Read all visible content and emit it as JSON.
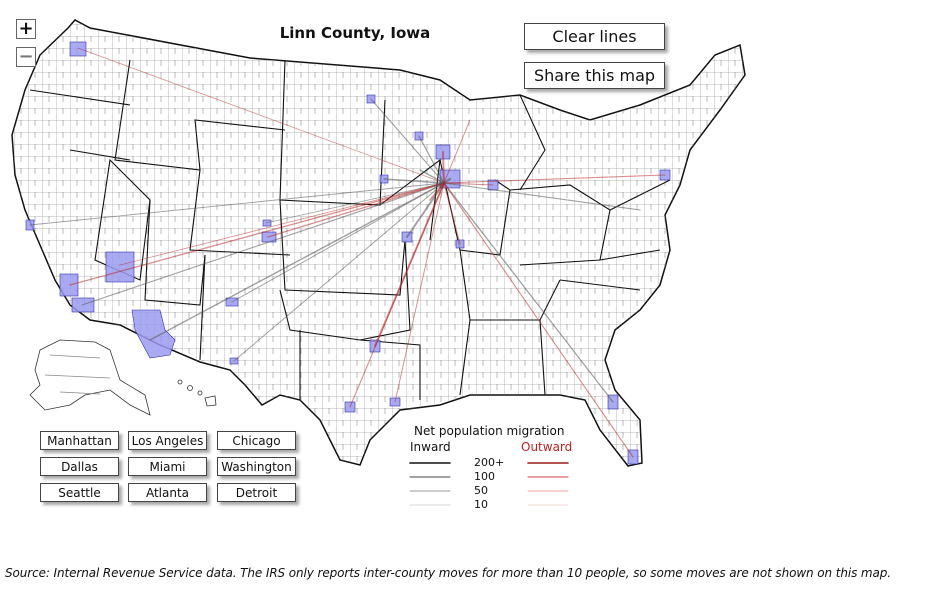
{
  "map": {
    "title": "Linn County, Iowa",
    "zoom_in_label": "+",
    "zoom_out_label": "−",
    "colors": {
      "inward_line": "#555555",
      "outward_line": "#b22222",
      "highlight_county": "#9b9bf0",
      "state_border": "#111111",
      "county_border": "#444444"
    }
  },
  "buttons": {
    "clear": "Clear lines",
    "share": "Share this map"
  },
  "cities": [
    "Manhattan",
    "Los Angeles",
    "Chicago",
    "Dallas",
    "Miami",
    "Washington",
    "Seattle",
    "Atlanta",
    "Detroit"
  ],
  "legend": {
    "title": "Net population migration",
    "inward": "Inward",
    "outward": "Outward",
    "values": [
      "200+",
      "100",
      "50",
      "10"
    ]
  },
  "source": "Source: Internal Revenue Service data. The IRS only reports inter-county moves for more than 10 people, so some moves are not shown on this map."
}
